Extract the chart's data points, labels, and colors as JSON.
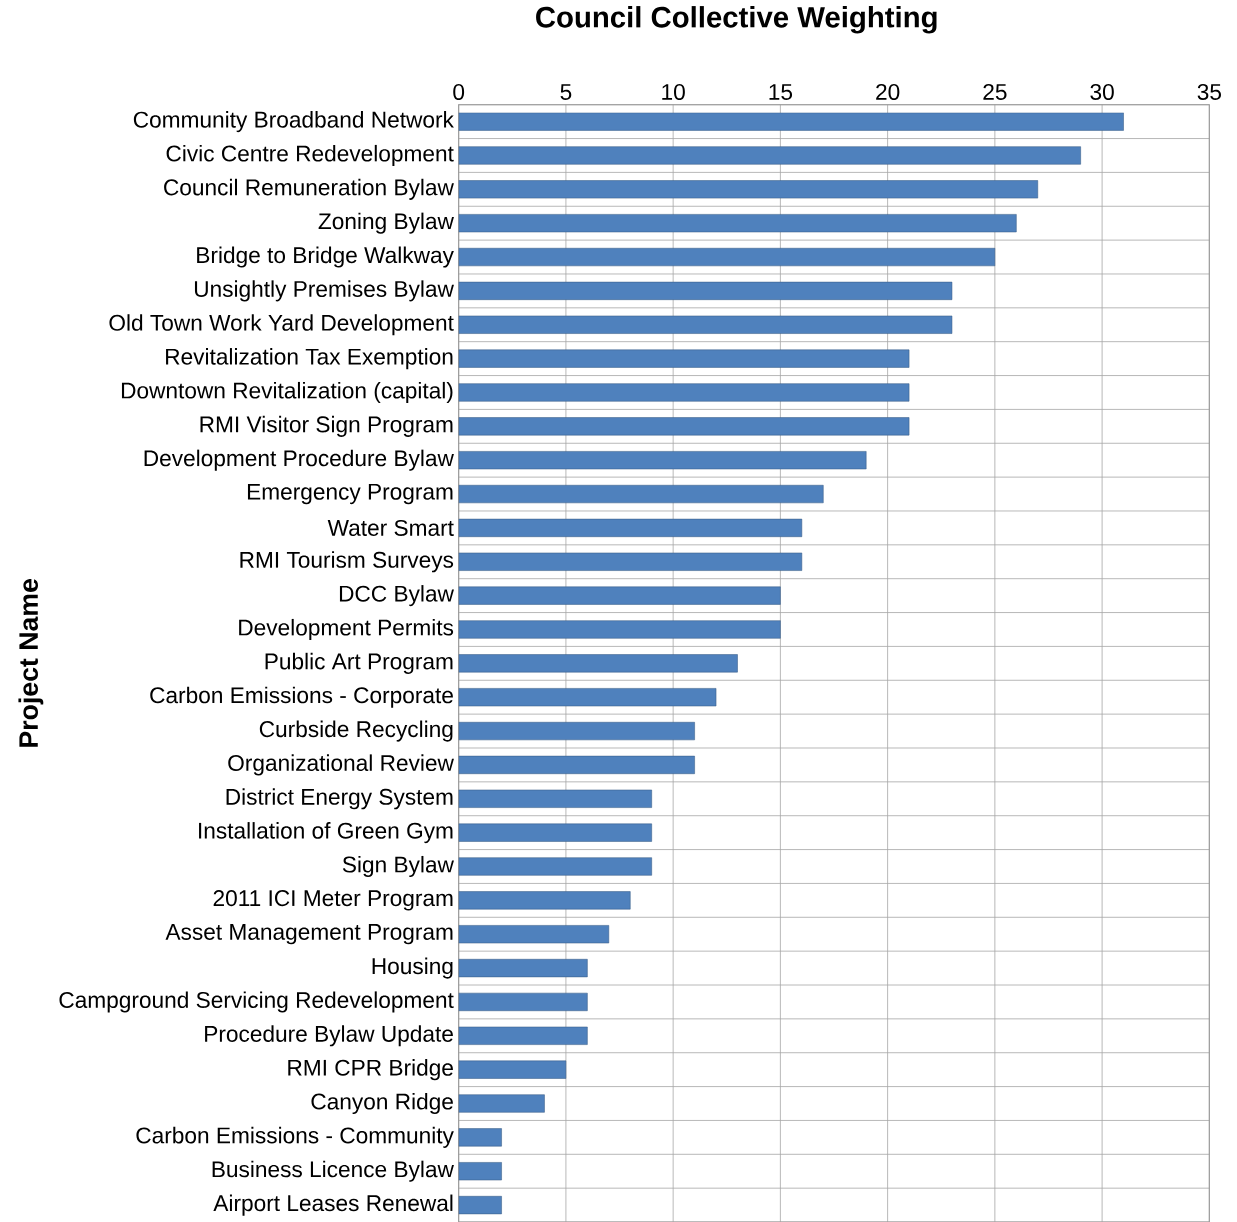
{
  "chart_data": {
    "type": "bar",
    "orientation": "horizontal",
    "title": "Council Collective Weighting",
    "ylabel": "Project Name",
    "categories": [
      "Community Broadband Network",
      "Civic Centre Redevelopment",
      "Council Remuneration Bylaw",
      "Zoning Bylaw",
      "Bridge to Bridge Walkway",
      "Unsightly Premises Bylaw",
      "Old Town Work Yard Development",
      "Revitalization Tax Exemption",
      "Downtown Revitalization (capital)",
      "RMI Visitor Sign Program",
      "Development Procedure Bylaw",
      "Emergency Program",
      "Water Smart",
      "RMI Tourism Surveys",
      "DCC Bylaw",
      "Development Permits",
      "Public Art Program",
      "Carbon Emissions - Corporate",
      "Curbside Recycling",
      "Organizational Review",
      "District Energy System",
      "Installation of Green Gym",
      "Sign Bylaw",
      "2011 ICI Meter Program",
      "Asset Management Program",
      "Housing",
      "Campground Servicing Redevelopment",
      "Procedure Bylaw Update",
      "RMI CPR Bridge",
      "Canyon Ridge",
      "Carbon Emissions - Community",
      "Business Licence Bylaw",
      "Airport Leases Renewal"
    ],
    "values": [
      31,
      29,
      27,
      26,
      25,
      23,
      23,
      21,
      21,
      21,
      19,
      17,
      16,
      16,
      15,
      15,
      13,
      12,
      11,
      11,
      9,
      9,
      9,
      8,
      7,
      6,
      6,
      6,
      5,
      4,
      2,
      2,
      2
    ],
    "color": "#4f81bd",
    "xlim": [
      0,
      35
    ],
    "xticks": [
      0,
      5,
      10,
      15,
      20,
      25,
      30,
      35
    ],
    "grid": true
  }
}
